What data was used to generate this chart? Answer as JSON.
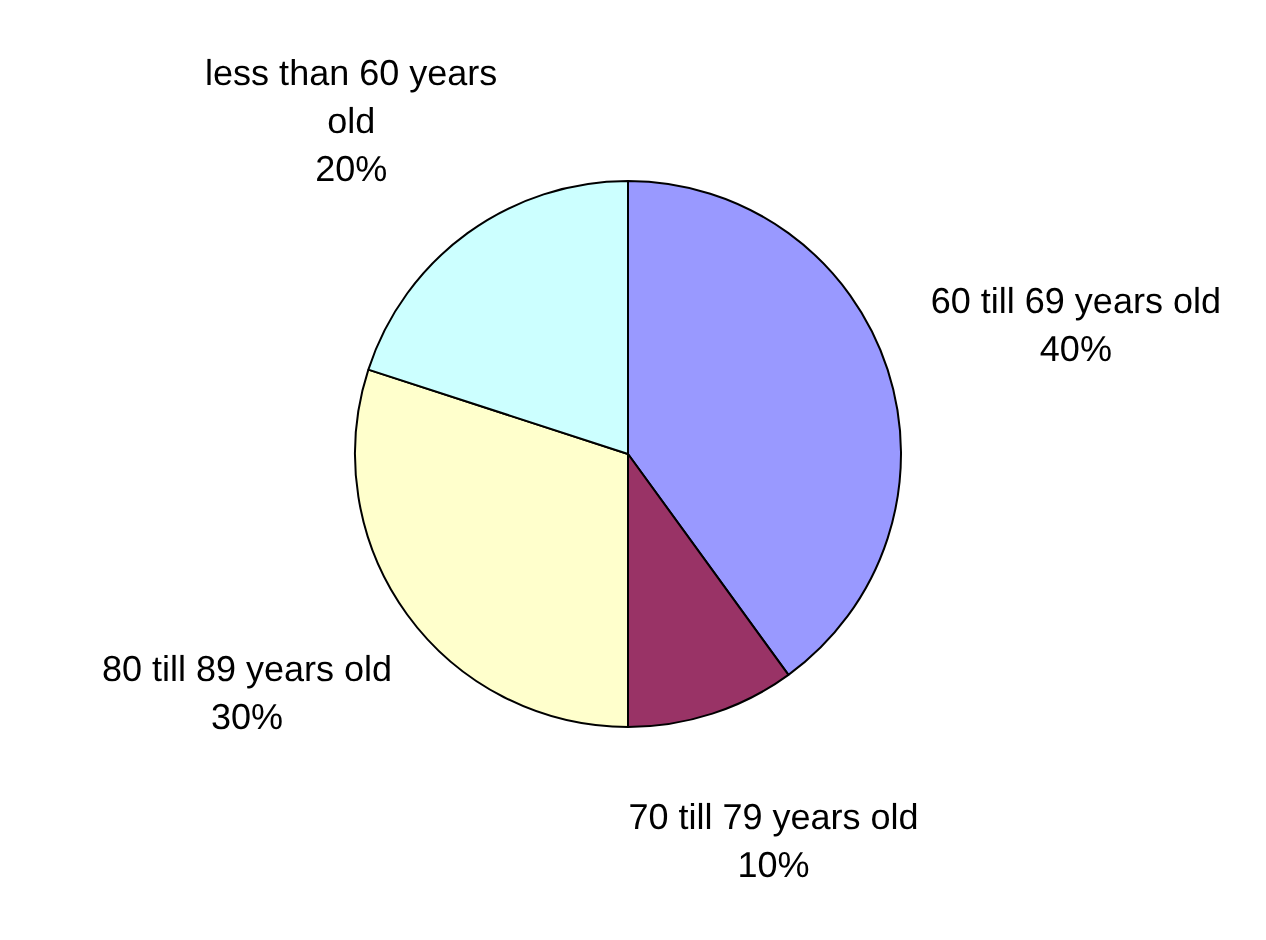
{
  "chart_data": {
    "type": "pie",
    "categories": [
      "60 till 69 years old",
      "70 till 79 years old",
      "80 till 89 years old",
      "less than 60 years old"
    ],
    "values": [
      40,
      10,
      30,
      20
    ],
    "value_labels": [
      "40%",
      "10%",
      "30%",
      "20%"
    ],
    "colors": [
      "#9999ff",
      "#993366",
      "#ffffcc",
      "#ccffff"
    ],
    "legend": false
  }
}
